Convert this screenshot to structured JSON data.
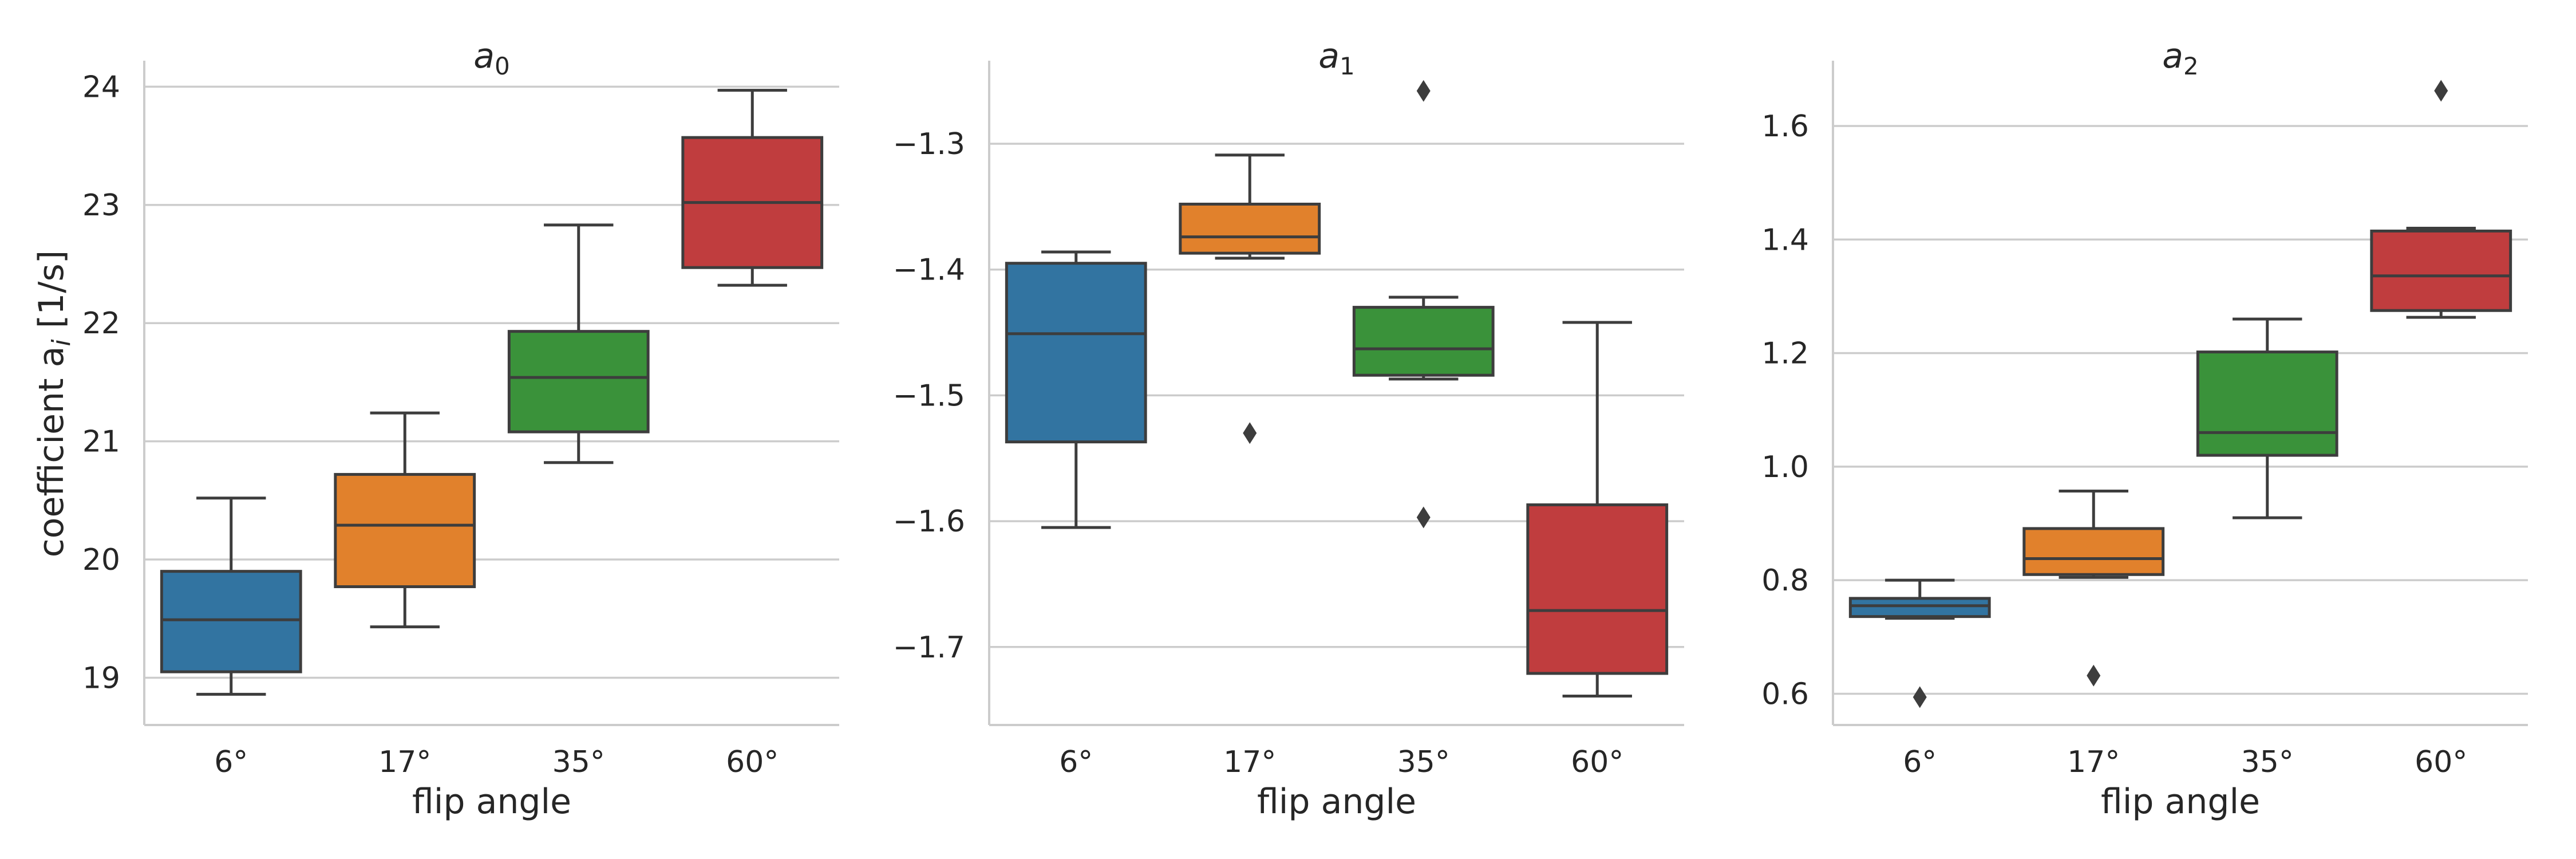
{
  "ylabel_main": "coefficient a",
  "ylabel_sub": "i",
  "ylabel_unit": " [1/s]",
  "chart_data": [
    {
      "type": "box",
      "title": "a",
      "title_sub": "0",
      "xlabel": "flip angle",
      "ylim": [
        18.6,
        24.22
      ],
      "yticks": [
        19,
        20,
        21,
        22,
        23,
        24
      ],
      "ytick_labels": [
        "19",
        "20",
        "21",
        "22",
        "23",
        "24"
      ],
      "categories": [
        "6°",
        "17°",
        "35°",
        "60°"
      ],
      "colors": [
        "#3274a1",
        "#e1812c",
        "#3a923a",
        "#c03d3e"
      ],
      "boxes": [
        {
          "whislo": 18.86,
          "q1": 19.05,
          "med": 19.49,
          "q3": 19.9,
          "whishi": 20.52,
          "fliers": []
        },
        {
          "whislo": 19.43,
          "q1": 19.77,
          "med": 20.29,
          "q3": 20.72,
          "whishi": 21.24,
          "fliers": []
        },
        {
          "whislo": 20.82,
          "q1": 21.08,
          "med": 21.54,
          "q3": 21.93,
          "whishi": 22.83,
          "fliers": []
        },
        {
          "whislo": 22.32,
          "q1": 22.47,
          "med": 23.02,
          "q3": 23.57,
          "whishi": 23.97,
          "fliers": []
        }
      ]
    },
    {
      "type": "box",
      "title": "a",
      "title_sub": "1",
      "xlabel": "flip angle",
      "ylim": [
        -1.762,
        -1.234
      ],
      "yticks": [
        -1.7,
        -1.6,
        -1.5,
        -1.4,
        -1.3
      ],
      "ytick_labels": [
        "−1.7",
        "−1.6",
        "−1.5",
        "−1.4",
        "−1.3"
      ],
      "categories": [
        "6°",
        "17°",
        "35°",
        "60°"
      ],
      "colors": [
        "#3274a1",
        "#e1812c",
        "#3a923a",
        "#c03d3e"
      ],
      "boxes": [
        {
          "whislo": -1.605,
          "q1": -1.537,
          "med": -1.451,
          "q3": -1.395,
          "whishi": -1.386,
          "fliers": []
        },
        {
          "whislo": -1.391,
          "q1": -1.387,
          "med": -1.374,
          "q3": -1.348,
          "whishi": -1.309,
          "fliers": [
            -1.53
          ]
        },
        {
          "whislo": -1.487,
          "q1": -1.484,
          "med": -1.463,
          "q3": -1.43,
          "whishi": -1.422,
          "fliers": [
            -1.597,
            -1.258
          ]
        },
        {
          "whislo": -1.739,
          "q1": -1.721,
          "med": -1.671,
          "q3": -1.587,
          "whishi": -1.442,
          "fliers": []
        }
      ]
    },
    {
      "type": "box",
      "title": "a",
      "title_sub": "2",
      "xlabel": "flip angle",
      "ylim": [
        0.545,
        1.715
      ],
      "yticks": [
        0.6,
        0.8,
        1.0,
        1.2,
        1.4,
        1.6
      ],
      "ytick_labels": [
        "0.6",
        "0.8",
        "1.0",
        "1.2",
        "1.4",
        "1.6"
      ],
      "categories": [
        "6°",
        "17°",
        "35°",
        "60°"
      ],
      "colors": [
        "#3274a1",
        "#e1812c",
        "#3a923a",
        "#c03d3e"
      ],
      "boxes": [
        {
          "whislo": 0.733,
          "q1": 0.736,
          "med": 0.755,
          "q3": 0.768,
          "whishi": 0.8,
          "fliers": [
            0.594
          ]
        },
        {
          "whislo": 0.805,
          "q1": 0.81,
          "med": 0.838,
          "q3": 0.891,
          "whishi": 0.957,
          "fliers": [
            0.632
          ]
        },
        {
          "whislo": 0.91,
          "q1": 1.02,
          "med": 1.06,
          "q3": 1.202,
          "whishi": 1.26,
          "fliers": []
        },
        {
          "whislo": 1.263,
          "q1": 1.275,
          "med": 1.336,
          "q3": 1.415,
          "whishi": 1.42,
          "fliers": [
            1.662
          ]
        }
      ]
    }
  ]
}
